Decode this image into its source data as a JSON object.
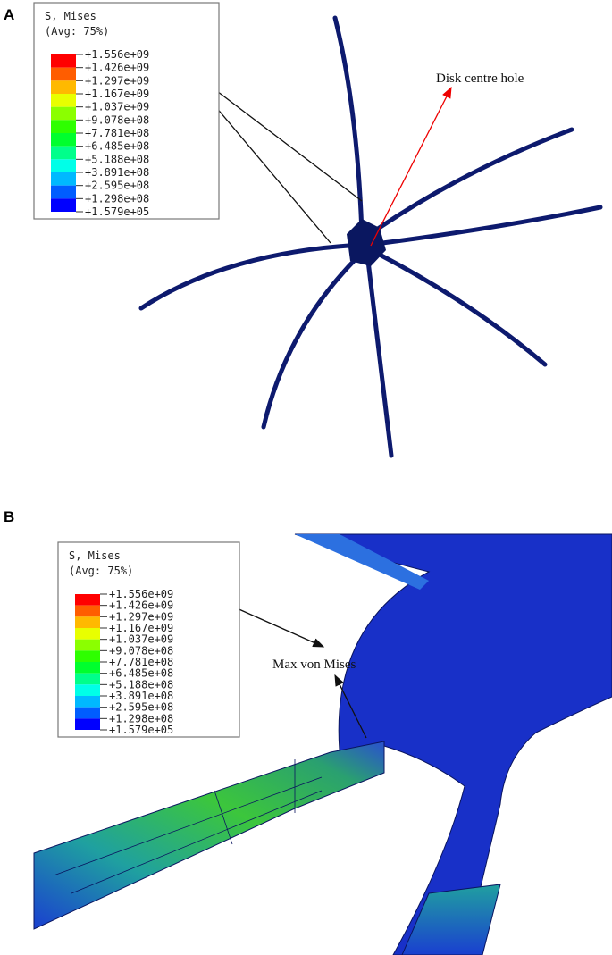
{
  "panel_a": {
    "label": "A",
    "legend": {
      "title": "S, Mises",
      "subtitle": "(Avg: 75%)",
      "values": [
        "+1.556e+09",
        "+1.426e+09",
        "+1.297e+09",
        "+1.167e+09",
        "+1.037e+09",
        "+9.078e+08",
        "+7.781e+08",
        "+6.485e+08",
        "+5.188e+08",
        "+3.891e+08",
        "+2.595e+08",
        "+1.298e+08",
        "+1.579e+05"
      ]
    },
    "annotation": "Disk centre hole"
  },
  "panel_b": {
    "label": "B",
    "legend": {
      "title": "S, Mises",
      "subtitle": "(Avg: 75%)",
      "values": [
        "+1.556e+09",
        "+1.426e+09",
        "+1.297e+09",
        "+1.167e+09",
        "+1.037e+09",
        "+9.078e+08",
        "+7.781e+08",
        "+6.485e+08",
        "+5.188e+08",
        "+3.891e+08",
        "+2.595e+08",
        "+1.298e+08",
        "+1.579e+05"
      ]
    },
    "annotation": "Max von Mises"
  }
}
